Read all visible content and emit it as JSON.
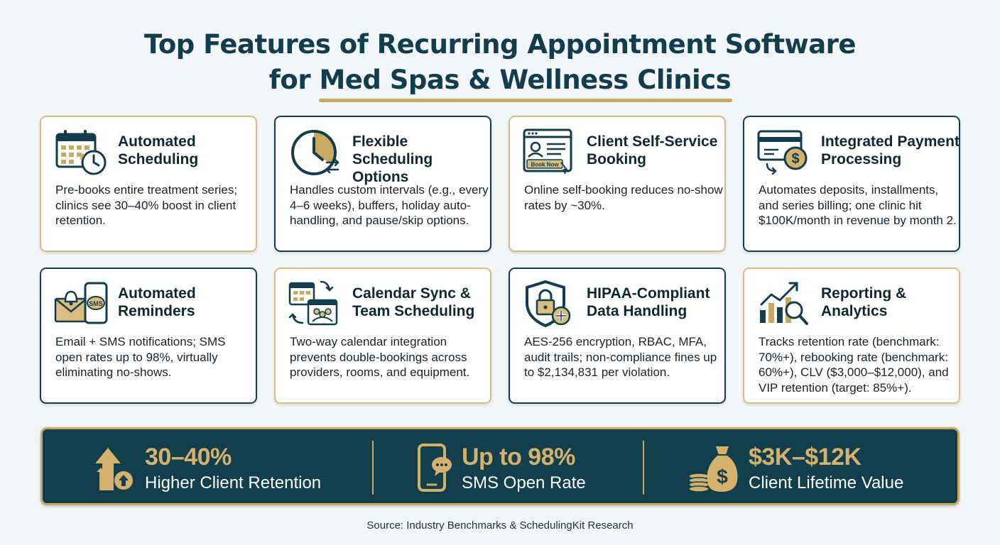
{
  "title": {
    "line1": "Top Features of Recurring Appointment Software",
    "line2": "for Med Spas & Wellness Clinics"
  },
  "colors": {
    "navy": "#133f4d",
    "gold": "#c9a961",
    "gold_text": "#d4b26d"
  },
  "features": [
    {
      "heading": "Automated Scheduling",
      "body": "Pre-books entire treatment series; clinics see 30–40% boost in client retention.",
      "icon": "calendar-clock-icon"
    },
    {
      "heading": "Flexible Scheduling Options",
      "body": "Handles custom intervals (e.g., every 4–6 weeks), buffers, holiday auto-handling, and pause/skip options.",
      "icon": "clock-arrows-icon"
    },
    {
      "heading": "Client Self-Service Booking",
      "body": "Online self-booking reduces no-show rates by ~30%.",
      "icon": "booking-window-icon",
      "button_label": "Book Now"
    },
    {
      "heading": "Integrated Payment Processing",
      "body": "Automates deposits, installments, and series billing; one clinic hit $100K/month in revenue by month 2.",
      "icon": "card-payment-icon"
    },
    {
      "heading": "Automated Reminders",
      "body": "Email + SMS notifications; SMS open rates up to 98%, virtually eliminating no-shows.",
      "icon": "email-sms-icon",
      "badge": "SMS"
    },
    {
      "heading": "Calendar Sync & Team Scheduling",
      "body": "Two-way calendar integration prevents double-bookings across providers, rooms, and equipment.",
      "icon": "calendar-sync-icon"
    },
    {
      "heading": "HIPAA-Compliant Data Handling",
      "body": "AES-256 encryption, RBAC, MFA, audit trails; non-compliance fines up to $2,134,831 per violation.",
      "icon": "shield-lock-icon"
    },
    {
      "heading": "Reporting & Analytics",
      "body": "Tracks retention rate (benchmark: 70%+), rebooking rate (benchmark: 60%+), CLV ($3,000–$12,000), and VIP retention (target: 85%+).",
      "icon": "chart-magnifier-icon"
    }
  ],
  "stats": [
    {
      "value": "30–40%",
      "label": "Higher Client Retention",
      "icon": "up-arrows-icon"
    },
    {
      "value": "Up to 98%",
      "label": "SMS Open Rate",
      "icon": "phone-chat-icon"
    },
    {
      "value": "$3K–$12K",
      "label": "Client Lifetime Value",
      "icon": "money-bag-icon"
    }
  ],
  "source": "Source: Industry Benchmarks & SchedulingKit Research"
}
